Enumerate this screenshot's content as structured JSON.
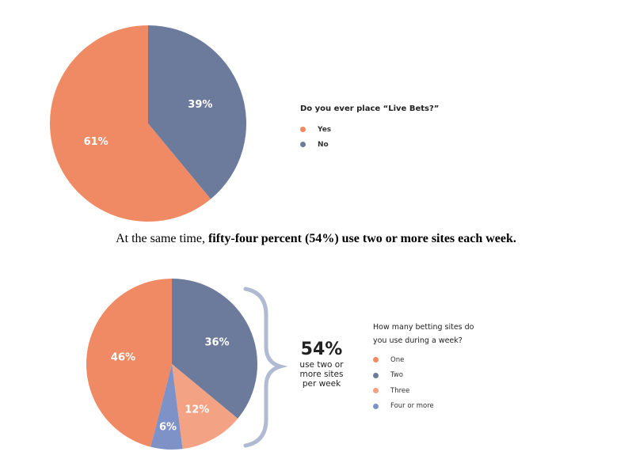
{
  "chart_data": [
    {
      "type": "pie",
      "title": "Do you ever place “Live Bets?”",
      "categories": [
        "Yes",
        "No"
      ],
      "values": [
        61,
        39
      ],
      "labels": [
        "61%",
        "39%"
      ],
      "colors": [
        "#F08A64",
        "#6C7B9C"
      ],
      "legend": "right"
    },
    {
      "type": "pie",
      "title": "How many betting sites do you use during a week?",
      "categories": [
        "One",
        "Two",
        "Three",
        "Four or more"
      ],
      "values": [
        46,
        36,
        12,
        6
      ],
      "labels": [
        "46%",
        "36%",
        "12%",
        "6%"
      ],
      "colors": [
        "#F08A64",
        "#6C7B9C",
        "#F3A283",
        "#7E92C8"
      ],
      "legend": "right",
      "annotation": {
        "value": "54%",
        "lines": [
          "use two or",
          "more sites",
          "per week"
        ]
      }
    }
  ],
  "text": {
    "sentence_plain": "At the same time, ",
    "sentence_bold": "fifty-four percent (54%) use two or more sites each week.",
    "legend2_title_line1": "How many betting sites do",
    "legend2_title_line2": "you use during a week?"
  }
}
